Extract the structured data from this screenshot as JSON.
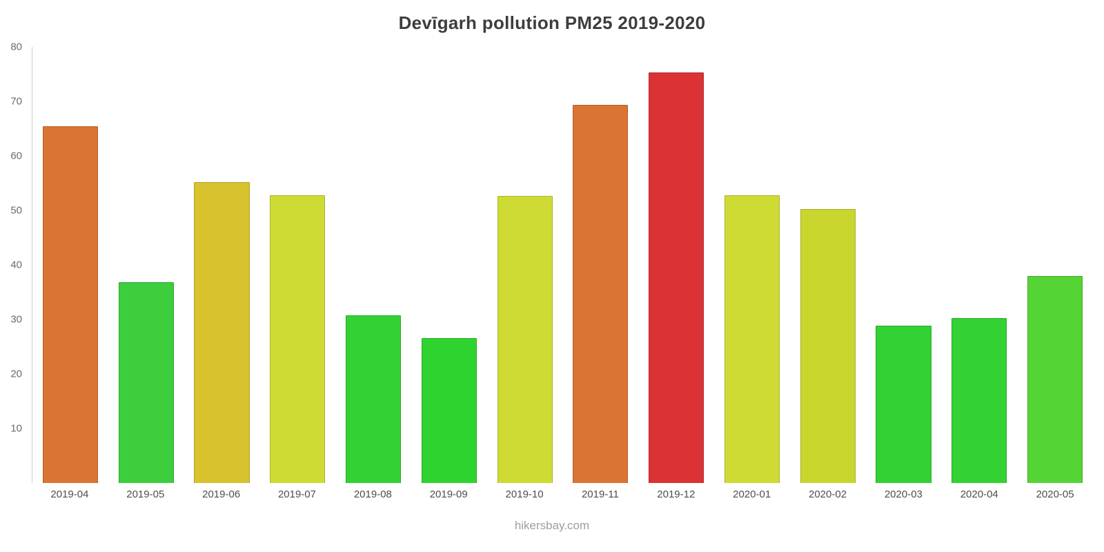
{
  "title": "Devīgarh pollution PM25 2019-2020",
  "footer": {
    "site": "hikersbay.com"
  },
  "chart_data": {
    "type": "bar",
    "title": "Devīgarh pollution PM25 2019-2020",
    "categories": [
      "2019-04",
      "2019-05",
      "2019-06",
      "2019-07",
      "2019-08",
      "2019-09",
      "2019-10",
      "2019-11",
      "2019-12",
      "2020-01",
      "2020-02",
      "2020-03",
      "2020-04",
      "2020-05"
    ],
    "values": [
      65.5,
      36.8,
      55.2,
      52.8,
      30.8,
      26.6,
      52.7,
      69.4,
      75.3,
      52.8,
      50.2,
      28.8,
      30.2,
      38.0
    ],
    "colors": [
      "#DB7433",
      "#3CCE3C",
      "#D8C22E",
      "#CEDB34",
      "#33D133",
      "#2FD32F",
      "#CEDB34",
      "#DB7433",
      "#DB3236",
      "#CEDB34",
      "#C9D62E",
      "#33D133",
      "#33D133",
      "#55D435"
    ],
    "ylim": [
      0,
      80
    ],
    "yticks": [
      10,
      20,
      30,
      40,
      50,
      60,
      70,
      80
    ],
    "xlabel": "",
    "ylabel": "",
    "grid": false,
    "legend": false
  }
}
